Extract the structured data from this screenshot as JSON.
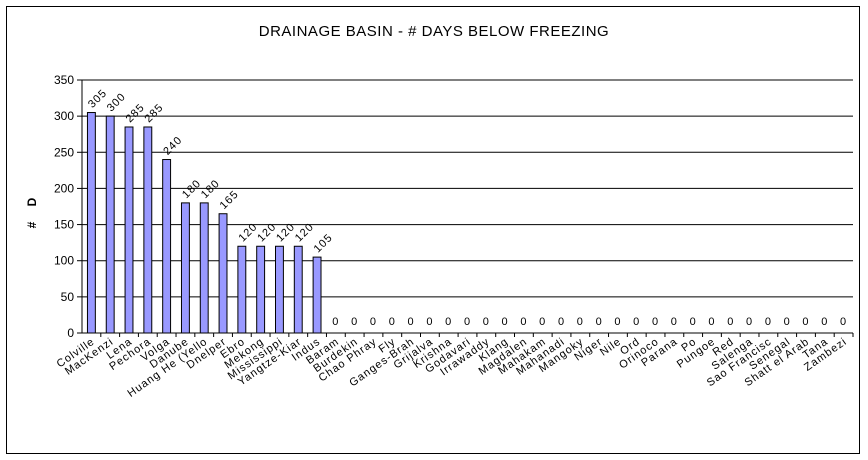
{
  "chart_data": {
    "type": "bar",
    "title": "DRAINAGE BASIN - # DAYS BELOW FREEZING",
    "xlabel": "",
    "ylabel": "# D",
    "ylim": [
      0,
      350
    ],
    "yticks": [
      0,
      50,
      100,
      150,
      200,
      250,
      300,
      350
    ],
    "grid": true,
    "legend": "none",
    "bar_color": "#9999FF",
    "categories": [
      "Colville",
      "MacKenzi",
      "Lena",
      "Pechora",
      "Volga",
      "Danube",
      "Huang He (Yello",
      "Dnelper",
      "Ebro",
      "Mekong",
      "Mississippi",
      "Yangtze-Kiar",
      "Indus",
      "Baram",
      "Burdekin",
      "Chao Phray",
      "Fly",
      "Ganges-Brah",
      "Grijalva",
      "Krishna",
      "Godavari",
      "Irrawaddy",
      "Klang",
      "Magdalen",
      "Mahakam",
      "Mahanadi",
      "Mangoky",
      "Niger",
      "Nile",
      "Ord",
      "Orinoco",
      "Parana",
      "Po",
      "Pungoe",
      "Red",
      "Salenga",
      "Sao Francisc",
      "Senegal",
      "Shatt el Arab",
      "Tana",
      "Zambezi"
    ],
    "values": [
      305,
      300,
      285,
      285,
      240,
      180,
      180,
      165,
      120,
      120,
      120,
      120,
      105,
      0,
      0,
      0,
      0,
      0,
      0,
      0,
      0,
      0,
      0,
      0,
      0,
      0,
      0,
      0,
      0,
      0,
      0,
      0,
      0,
      0,
      0,
      0,
      0,
      0,
      0,
      0,
      0
    ]
  }
}
